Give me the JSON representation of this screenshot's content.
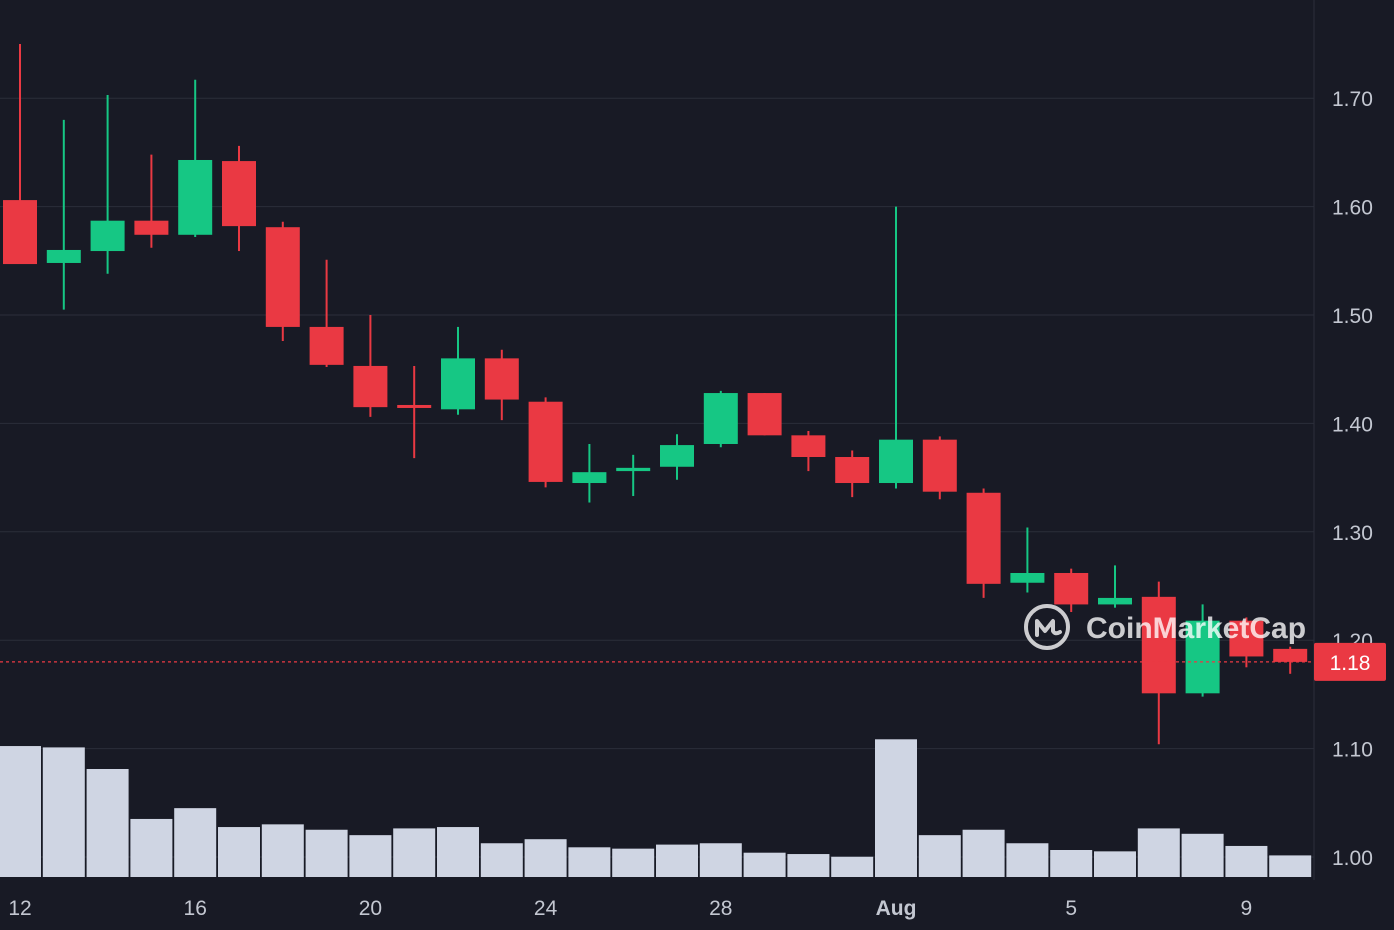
{
  "chart_data": {
    "type": "candlestick",
    "title": "",
    "xlabel": "",
    "ylabel": "",
    "ylim": [
      0.99,
      1.78
    ],
    "y_ticks": [
      1.0,
      1.1,
      1.2,
      1.3,
      1.4,
      1.5,
      1.6,
      1.7
    ],
    "y_tick_labels": [
      "1.00",
      "1.10",
      "1.20",
      "1.30",
      "1.40",
      "1.50",
      "1.60",
      "1.70"
    ],
    "x_tick_labels": [
      {
        "label": "12",
        "day": 0,
        "bold": false
      },
      {
        "label": "16",
        "day": 4,
        "bold": false
      },
      {
        "label": "20",
        "day": 8,
        "bold": false
      },
      {
        "label": "24",
        "day": 12,
        "bold": false
      },
      {
        "label": "28",
        "day": 16,
        "bold": false
      },
      {
        "label": "Aug",
        "day": 20,
        "bold": true
      },
      {
        "label": "5",
        "day": 24,
        "bold": false
      },
      {
        "label": "9",
        "day": 28,
        "bold": false
      }
    ],
    "grid": true,
    "current_price": 1.18,
    "current_price_label": "1.18",
    "colors": {
      "background": "#181a25",
      "up": "#16c784",
      "down": "#ea3943",
      "volume": "#cfd5e3",
      "grid": "#2b2e3a",
      "axis_text": "#c3c7d1"
    },
    "watermark": "CoinMarketCap",
    "candles": [
      {
        "date": "Jul 12",
        "open": 1.606,
        "high": 1.75,
        "low": 1.547,
        "close": 1.547,
        "volume": 0.97
      },
      {
        "date": "Jul 13",
        "open": 1.548,
        "high": 1.68,
        "low": 1.505,
        "close": 1.56,
        "volume": 0.96
      },
      {
        "date": "Jul 14",
        "open": 1.559,
        "high": 1.703,
        "low": 1.538,
        "close": 1.587,
        "volume": 0.8
      },
      {
        "date": "Jul 15",
        "open": 1.587,
        "high": 1.648,
        "low": 1.562,
        "close": 1.574,
        "volume": 0.43
      },
      {
        "date": "Jul 16",
        "open": 1.574,
        "high": 1.717,
        "low": 1.572,
        "close": 1.643,
        "volume": 0.51
      },
      {
        "date": "Jul 17",
        "open": 1.642,
        "high": 1.656,
        "low": 1.559,
        "close": 1.582,
        "volume": 0.37
      },
      {
        "date": "Jul 18",
        "open": 1.581,
        "high": 1.586,
        "low": 1.476,
        "close": 1.489,
        "volume": 0.39
      },
      {
        "date": "Jul 19",
        "open": 1.489,
        "high": 1.551,
        "low": 1.452,
        "close": 1.454,
        "volume": 0.35
      },
      {
        "date": "Jul 20",
        "open": 1.453,
        "high": 1.5,
        "low": 1.406,
        "close": 1.415,
        "volume": 0.31
      },
      {
        "date": "Jul 21",
        "open": 1.417,
        "high": 1.453,
        "low": 1.368,
        "close": 1.415,
        "volume": 0.36
      },
      {
        "date": "Jul 22",
        "open": 1.413,
        "high": 1.489,
        "low": 1.408,
        "close": 1.46,
        "volume": 0.37
      },
      {
        "date": "Jul 23",
        "open": 1.46,
        "high": 1.468,
        "low": 1.403,
        "close": 1.422,
        "volume": 0.25
      },
      {
        "date": "Jul 24",
        "open": 1.42,
        "high": 1.424,
        "low": 1.341,
        "close": 1.346,
        "volume": 0.28
      },
      {
        "date": "Jul 25",
        "open": 1.345,
        "high": 1.381,
        "low": 1.327,
        "close": 1.355,
        "volume": 0.22
      },
      {
        "date": "Jul 26",
        "open": 1.356,
        "high": 1.371,
        "low": 1.333,
        "close": 1.359,
        "volume": 0.21
      },
      {
        "date": "Jul 27",
        "open": 1.36,
        "high": 1.39,
        "low": 1.348,
        "close": 1.38,
        "volume": 0.24
      },
      {
        "date": "Jul 28",
        "open": 1.381,
        "high": 1.43,
        "low": 1.378,
        "close": 1.428,
        "volume": 0.25
      },
      {
        "date": "Jul 29",
        "open": 1.428,
        "high": 1.428,
        "low": 1.389,
        "close": 1.389,
        "volume": 0.18
      },
      {
        "date": "Jul 30",
        "open": 1.389,
        "high": 1.393,
        "low": 1.356,
        "close": 1.369,
        "volume": 0.17
      },
      {
        "date": "Jul 31",
        "open": 1.369,
        "high": 1.375,
        "low": 1.332,
        "close": 1.345,
        "volume": 0.15
      },
      {
        "date": "Aug 1",
        "open": 1.345,
        "high": 1.6,
        "low": 1.34,
        "close": 1.385,
        "volume": 1.02
      },
      {
        "date": "Aug 2",
        "open": 1.385,
        "high": 1.388,
        "low": 1.33,
        "close": 1.337,
        "volume": 0.31
      },
      {
        "date": "Aug 3",
        "open": 1.336,
        "high": 1.34,
        "low": 1.239,
        "close": 1.252,
        "volume": 0.35
      },
      {
        "date": "Aug 4",
        "open": 1.253,
        "high": 1.304,
        "low": 1.244,
        "close": 1.262,
        "volume": 0.25
      },
      {
        "date": "Aug 5",
        "open": 1.262,
        "high": 1.266,
        "low": 1.226,
        "close": 1.233,
        "volume": 0.2
      },
      {
        "date": "Aug 6",
        "open": 1.233,
        "high": 1.269,
        "low": 1.23,
        "close": 1.239,
        "volume": 0.19
      },
      {
        "date": "Aug 7",
        "open": 1.24,
        "high": 1.254,
        "low": 1.104,
        "close": 1.151,
        "volume": 0.36
      },
      {
        "date": "Aug 8",
        "open": 1.151,
        "high": 1.233,
        "low": 1.148,
        "close": 1.218,
        "volume": 0.32
      },
      {
        "date": "Aug 9",
        "open": 1.218,
        "high": 1.221,
        "low": 1.175,
        "close": 1.185,
        "volume": 0.23
      },
      {
        "date": "Aug 10",
        "open": 1.192,
        "high": 1.194,
        "low": 1.169,
        "close": 1.18,
        "volume": 0.16
      }
    ]
  }
}
